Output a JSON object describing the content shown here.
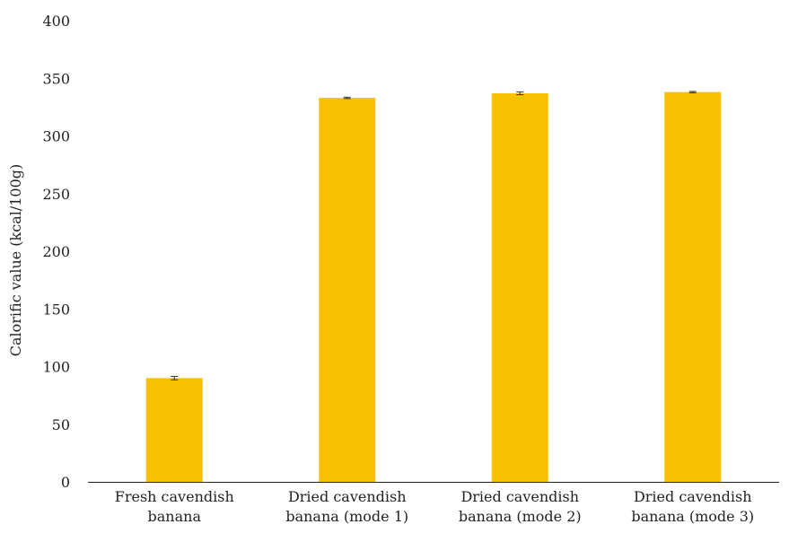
{
  "chart_data": {
    "type": "bar",
    "title": "",
    "xlabel": "",
    "ylabel": "Calorific value (kcal/100g)",
    "ylim": [
      0,
      400
    ],
    "yticks": [
      0,
      50,
      100,
      150,
      200,
      250,
      300,
      350,
      400
    ],
    "grid": false,
    "categories": [
      [
        "Fresh cavendish",
        "banana"
      ],
      [
        "Dried cavendish",
        "banana (mode 1)"
      ],
      [
        "Dried cavendish",
        "banana (mode 2)"
      ],
      [
        "Dried cavendish",
        "banana (mode 3)"
      ]
    ],
    "series": [
      {
        "values": [
          90,
          333,
          337,
          338
        ],
        "errors": [
          1.5,
          0.6,
          1.2,
          0.6
        ],
        "color": "#F8C000"
      }
    ]
  }
}
